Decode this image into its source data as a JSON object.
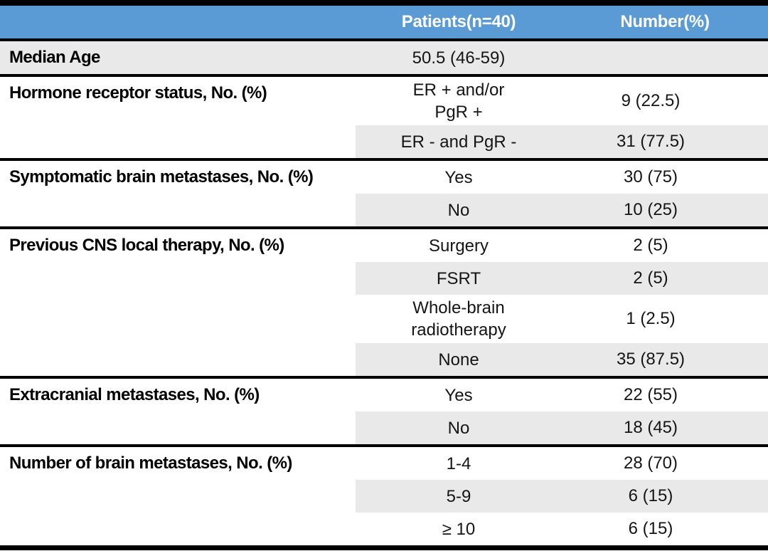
{
  "table": {
    "header": {
      "patients_label": "Patients(n=40)",
      "number_label": "Number(%)"
    },
    "groups": [
      {
        "label": "Median Age",
        "full_stripe": true,
        "rows": [
          {
            "value": "50.5 (46-59)",
            "number": ""
          }
        ]
      },
      {
        "label": "Hormone receptor status, No. (%)",
        "full_stripe": false,
        "rows": [
          {
            "value": "ER + and/or\nPgR +",
            "number": "9 (22.5)"
          },
          {
            "value": "ER - and PgR -",
            "number": "31 (77.5)"
          }
        ]
      },
      {
        "label": "Symptomatic brain metastases, No. (%)",
        "full_stripe": false,
        "rows": [
          {
            "value": "Yes",
            "number": "30 (75)"
          },
          {
            "value": "No",
            "number": "10 (25)"
          }
        ]
      },
      {
        "label": "Previous CNS local therapy, No. (%)",
        "full_stripe": false,
        "rows": [
          {
            "value": "Surgery",
            "number": "2 (5)"
          },
          {
            "value": "FSRT",
            "number": "2 (5)"
          },
          {
            "value": "Whole-brain\nradiotherapy",
            "number": "1 (2.5)"
          },
          {
            "value": "None",
            "number": "35 (87.5)"
          }
        ]
      },
      {
        "label": "Extracranial metastases, No. (%)",
        "full_stripe": false,
        "rows": [
          {
            "value": "Yes",
            "number": "22 (55)"
          },
          {
            "value": "No",
            "number": "18 (45)"
          }
        ]
      },
      {
        "label": "Number of brain metastases, No. (%)",
        "full_stripe": false,
        "rows": [
          {
            "value": "1-4",
            "number": "28 (70)"
          },
          {
            "value": "5-9",
            "number": "6 (15)"
          },
          {
            "value": "≥ 10",
            "number": "6 (15)"
          }
        ]
      }
    ],
    "colors": {
      "header_bg": "#5b9bd5",
      "header_text": "#ffffff",
      "stripe": "#e9e9e9",
      "border": "#000000"
    }
  }
}
